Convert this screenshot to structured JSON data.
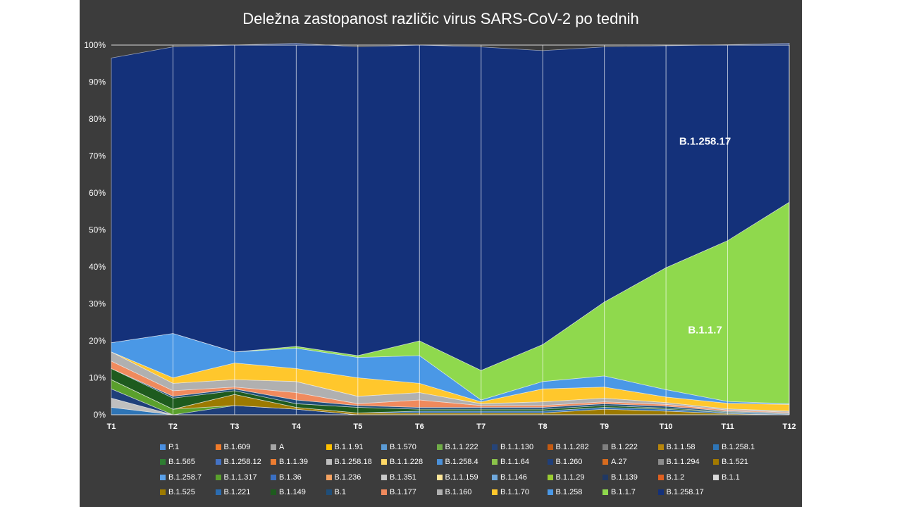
{
  "chart_data": {
    "type": "area",
    "title": "Deležna zastopanost različic virus SARS-CoV-2 po tednih",
    "categories": [
      "T1",
      "T2",
      "T3",
      "T4",
      "T5",
      "T6",
      "T7",
      "T8",
      "T9",
      "T10",
      "T11",
      "T12"
    ],
    "y_ticks": [
      "0%",
      "10%",
      "20%",
      "30%",
      "40%",
      "50%",
      "60%",
      "70%",
      "80%",
      "90%",
      "100%"
    ],
    "ylim": [
      0,
      100
    ],
    "stacked": true,
    "grid": "vertical",
    "legend_position": "bottom",
    "series": [
      {
        "name": "P.1",
        "color": "#4a8fe0",
        "values": [
          0,
          0,
          0,
          0,
          0,
          0,
          0,
          0,
          0,
          0,
          0,
          0
        ]
      },
      {
        "name": "B.1.609",
        "color": "#f07b2a",
        "values": [
          0,
          0,
          0,
          0,
          0,
          0,
          0,
          0,
          0,
          0,
          0,
          0
        ]
      },
      {
        "name": "A",
        "color": "#a5a5a5",
        "values": [
          0,
          0,
          0,
          0,
          0,
          0,
          0,
          0,
          0,
          0,
          0,
          0
        ]
      },
      {
        "name": "B.1.1.91",
        "color": "#ffc000",
        "values": [
          0,
          0,
          0,
          0,
          0,
          0,
          0,
          0,
          0,
          0,
          0,
          0
        ]
      },
      {
        "name": "B.1.570",
        "color": "#5b9bd5",
        "values": [
          0,
          0,
          0,
          0,
          0,
          0,
          0,
          0,
          0,
          0,
          0,
          0
        ]
      },
      {
        "name": "B.1.1.222",
        "color": "#70ad47",
        "values": [
          0,
          0,
          0,
          0,
          0,
          0,
          0,
          0,
          0,
          0,
          0,
          0
        ]
      },
      {
        "name": "B.1.1.130",
        "color": "#264478",
        "values": [
          0,
          0,
          0,
          0,
          0,
          0,
          0,
          0,
          0,
          0,
          0,
          0
        ]
      },
      {
        "name": "B.1.1.282",
        "color": "#c55a11",
        "values": [
          0,
          0,
          0,
          0,
          0,
          0,
          0,
          0,
          0,
          0,
          0,
          0
        ]
      },
      {
        "name": "B.1.222",
        "color": "#7f7f7f",
        "values": [
          0,
          0,
          0,
          0,
          0,
          0,
          0,
          0,
          0,
          0,
          0,
          0
        ]
      },
      {
        "name": "B.1.1.58",
        "color": "#b8860b",
        "values": [
          0,
          0,
          0,
          0,
          0,
          0,
          0,
          0,
          0,
          0,
          0,
          0
        ]
      },
      {
        "name": "B.1.258.1",
        "color": "#2e75b6",
        "values": [
          2,
          0,
          0,
          0,
          0,
          0,
          0,
          0,
          0,
          0,
          0,
          0
        ]
      },
      {
        "name": "B.1.565",
        "color": "#2e7d32",
        "values": [
          0,
          0,
          0,
          0,
          0,
          0,
          0,
          0,
          0,
          0,
          0,
          0
        ]
      },
      {
        "name": "B.1.258.12",
        "color": "#4472c4",
        "values": [
          0,
          0,
          0,
          0,
          0,
          0,
          0,
          0,
          0,
          0,
          0,
          0
        ]
      },
      {
        "name": "B.1.1.39",
        "color": "#ed7d31",
        "values": [
          0,
          0,
          0,
          0,
          0,
          0,
          0,
          0,
          0,
          0,
          0,
          0
        ]
      },
      {
        "name": "B.1.258.18",
        "color": "#bfbfbf",
        "values": [
          2.5,
          0,
          0,
          0,
          0,
          0,
          0,
          0,
          0,
          0,
          0,
          0
        ]
      },
      {
        "name": "B.1.1.228",
        "color": "#ffd966",
        "values": [
          0,
          0,
          0,
          0,
          0,
          0,
          0,
          0,
          0,
          0,
          0,
          0
        ]
      },
      {
        "name": "B.1.258.4",
        "color": "#4a90d9",
        "values": [
          0,
          0,
          0,
          0,
          0,
          0,
          0,
          0,
          0,
          0,
          0,
          0
        ]
      },
      {
        "name": "B.1.1.64",
        "color": "#8bc34a",
        "values": [
          0,
          0,
          0,
          0,
          0,
          0,
          0,
          0,
          0,
          0,
          0,
          0
        ]
      },
      {
        "name": "B.1.260",
        "color": "#1f3f7a",
        "values": [
          2.5,
          0,
          2.5,
          1.5,
          0,
          0,
          0,
          0,
          0,
          0,
          0,
          0
        ]
      },
      {
        "name": "A.27",
        "color": "#d86c1f",
        "values": [
          0,
          0,
          0,
          0,
          0,
          0,
          0,
          0,
          0,
          0,
          0,
          0
        ]
      },
      {
        "name": "B.1.1.294",
        "color": "#8c8c8c",
        "values": [
          0,
          0,
          0,
          0,
          0,
          0,
          0,
          0,
          0,
          0,
          0,
          0
        ]
      },
      {
        "name": "B.1.521",
        "color": "#a37a00",
        "values": [
          0,
          0,
          0,
          0,
          0,
          0,
          0,
          0,
          0,
          0,
          0,
          0
        ]
      },
      {
        "name": "B.1.258.7",
        "color": "#5aa0e8",
        "values": [
          0,
          0,
          0,
          0,
          0,
          0,
          0,
          0,
          0,
          0,
          0,
          0
        ]
      },
      {
        "name": "B.1.1.317",
        "color": "#5aa02c",
        "values": [
          2.5,
          1.5,
          0,
          0,
          0,
          0,
          0,
          0,
          0,
          0,
          0,
          0
        ]
      },
      {
        "name": "B.1.36",
        "color": "#3a6fc2",
        "values": [
          0,
          0,
          0,
          0,
          0,
          0,
          0,
          0,
          0,
          0,
          0,
          0
        ]
      },
      {
        "name": "B.1.236",
        "color": "#f4a261",
        "values": [
          0,
          0,
          0,
          0,
          0,
          0,
          0,
          0,
          0,
          0,
          0,
          0
        ]
      },
      {
        "name": "B.1.351",
        "color": "#c8c8c8",
        "values": [
          0,
          0,
          0,
          0,
          0,
          0,
          0,
          0,
          0,
          0,
          0,
          0
        ]
      },
      {
        "name": "B.1.1.159",
        "color": "#ffe699",
        "values": [
          0,
          0,
          0,
          0,
          0,
          0,
          0,
          0,
          0,
          0,
          0,
          0
        ]
      },
      {
        "name": "B.1.146",
        "color": "#6fa8dc",
        "values": [
          0,
          0,
          0,
          0,
          0,
          0,
          0,
          0,
          0,
          0,
          0,
          0
        ]
      },
      {
        "name": "B.1.1.29",
        "color": "#9acd32",
        "values": [
          0,
          0,
          0,
          0,
          0,
          0,
          0,
          0,
          0,
          0,
          0,
          0
        ]
      },
      {
        "name": "B.1.139",
        "color": "#203864",
        "values": [
          0,
          0,
          0,
          0,
          0,
          0,
          0,
          0,
          0,
          0,
          0,
          0
        ]
      },
      {
        "name": "B.1.2",
        "color": "#e06020",
        "values": [
          0,
          0,
          0,
          0,
          0,
          0,
          0,
          0,
          0,
          0,
          0,
          0
        ]
      },
      {
        "name": "B.1.1",
        "color": "#d9d9d9",
        "values": [
          0,
          0,
          0,
          0,
          0,
          0,
          0,
          0,
          0,
          0,
          0,
          0
        ]
      },
      {
        "name": "B.1.525",
        "color": "#9c7a00",
        "values": [
          0,
          0,
          3,
          0.5,
          0.5,
          0.5,
          0.5,
          0.5,
          1.5,
          1,
          0.3,
          0
        ]
      },
      {
        "name": "B.1.221",
        "color": "#2b6cb0",
        "values": [
          0,
          0,
          0,
          0,
          0,
          0.5,
          0.5,
          0.5,
          0.5,
          0.5,
          0.3,
          0.2
        ]
      },
      {
        "name": "B.1.149",
        "color": "#1e5b1e",
        "values": [
          3,
          3,
          1,
          1,
          1.5,
          0.5,
          0.5,
          0.5,
          0.5,
          0.3,
          0.2,
          0.1
        ]
      },
      {
        "name": "B.1",
        "color": "#1f4e79",
        "values": [
          0,
          0.5,
          0.5,
          1,
          0.5,
          0.5,
          0.5,
          0.5,
          0.5,
          0.5,
          0.2,
          0.2
        ]
      },
      {
        "name": "B.1.177",
        "color": "#f08a5d",
        "values": [
          2,
          1.5,
          0.5,
          2,
          0.5,
          2,
          0.5,
          0.5,
          0.5,
          0.5,
          0.3,
          0.2
        ]
      },
      {
        "name": "B.1.160",
        "color": "#b0b0b0",
        "values": [
          2.5,
          2,
          2,
          3,
          2,
          2,
          0.5,
          1,
          1,
          0.5,
          0.3,
          0.3
        ]
      },
      {
        "name": "B.1.1.70",
        "color": "#ffc72c",
        "values": [
          0,
          1.5,
          4.5,
          3.5,
          5,
          2.5,
          0.5,
          3.5,
          3,
          1.5,
          1.5,
          1.8
        ]
      },
      {
        "name": "B.1.258",
        "color": "#4a98e6",
        "values": [
          2.5,
          12,
          3,
          5.5,
          5.5,
          7.5,
          0.5,
          2,
          3,
          2,
          0.5,
          0.2
        ]
      },
      {
        "name": "B.1.1.7",
        "color": "#8fd94d",
        "values": [
          0,
          0,
          0,
          0.5,
          0.5,
          4,
          8,
          10,
          20,
          33,
          43.5,
          54.5
        ]
      },
      {
        "name": "B.1.258.17",
        "color": "#14317a",
        "values": [
          77,
          77.5,
          83,
          82,
          83.5,
          80,
          87.5,
          79.5,
          69,
          60,
          53,
          43
        ]
      }
    ],
    "annotations": [
      {
        "text": "B.1.258.17",
        "series": "B.1.258.17",
        "x": "T11",
        "y": 74
      },
      {
        "text": "B.1.1.7",
        "series": "B.1.1.7",
        "x": "T11",
        "y": 23
      }
    ]
  }
}
